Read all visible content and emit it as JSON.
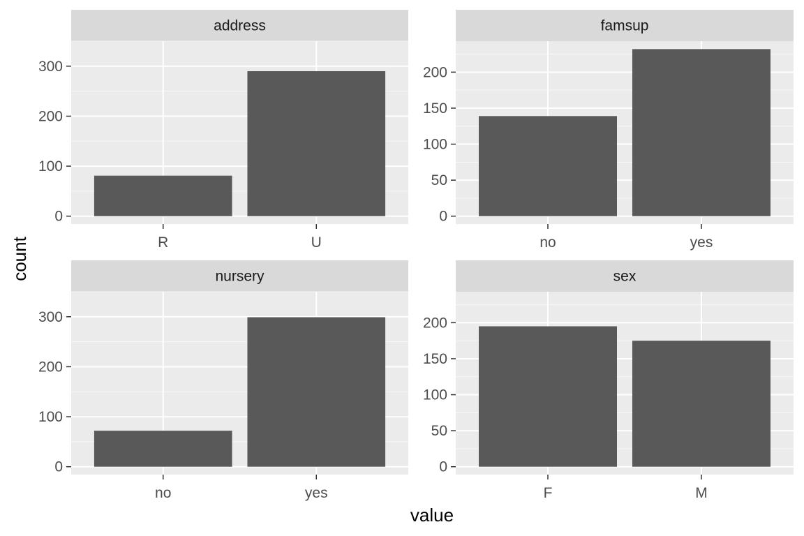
{
  "chart_data": {
    "type": "bar",
    "xlabel": "value",
    "ylabel": "count",
    "grid": true,
    "panel_background": "#ebebeb",
    "strip_background": "#d9d9d9",
    "bar_color": "#595959",
    "grid_color": "#ffffff",
    "facets": [
      {
        "title": "address",
        "categories": [
          "R",
          "U"
        ],
        "values": [
          81,
          290
        ],
        "ylim": [
          0,
          350
        ],
        "yticks": [
          0,
          100,
          200,
          300
        ]
      },
      {
        "title": "famsup",
        "categories": [
          "no",
          "yes"
        ],
        "values": [
          139,
          232
        ],
        "ylim": [
          0,
          243
        ],
        "yticks": [
          0,
          50,
          100,
          150,
          200
        ]
      },
      {
        "title": "nursery",
        "categories": [
          "no",
          "yes"
        ],
        "values": [
          72,
          299
        ],
        "ylim": [
          0,
          350
        ],
        "yticks": [
          0,
          100,
          200,
          300
        ]
      },
      {
        "title": "sex",
        "categories": [
          "F",
          "M"
        ],
        "values": [
          195,
          175
        ],
        "ylim": [
          0,
          243
        ],
        "yticks": [
          0,
          50,
          100,
          150,
          200
        ]
      }
    ]
  }
}
